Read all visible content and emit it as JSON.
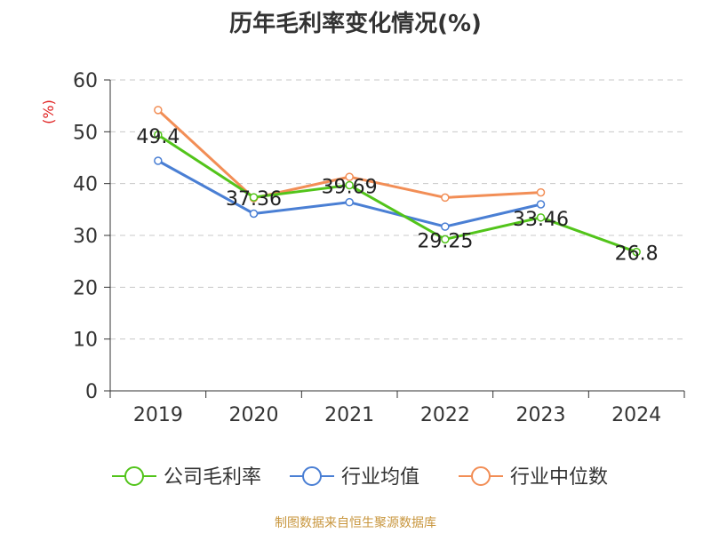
{
  "title": "历年毛利率变化情况(%)",
  "source": "制图数据来自恒生聚源数据库",
  "chart_data": {
    "type": "line",
    "title": "历年毛利率变化情况(%)",
    "ylabel": "(%)",
    "xlabel": "",
    "categories": [
      "2019",
      "2020",
      "2021",
      "2022",
      "2023",
      "2024"
    ],
    "ylim": [
      0,
      60
    ],
    "yticks": [
      0,
      10,
      20,
      30,
      40,
      50,
      60
    ],
    "grid": true,
    "legend": "bottom",
    "series": [
      {
        "name": "公司毛利率",
        "color": "#52c41a",
        "values": [
          49.4,
          37.36,
          39.69,
          29.25,
          33.46,
          26.8
        ],
        "labels": [
          "49.4",
          "37.36",
          "39.69",
          "29.25",
          "33.46",
          "26.8"
        ]
      },
      {
        "name": "行业均值",
        "color": "#4a7fd4",
        "values": [
          44.4,
          34.2,
          36.4,
          31.7,
          36.0,
          null
        ]
      },
      {
        "name": "行业中位数",
        "color": "#f28e56",
        "values": [
          54.2,
          37.2,
          41.3,
          37.3,
          38.3,
          null
        ]
      }
    ],
    "ylabel_color": "#e02020"
  }
}
